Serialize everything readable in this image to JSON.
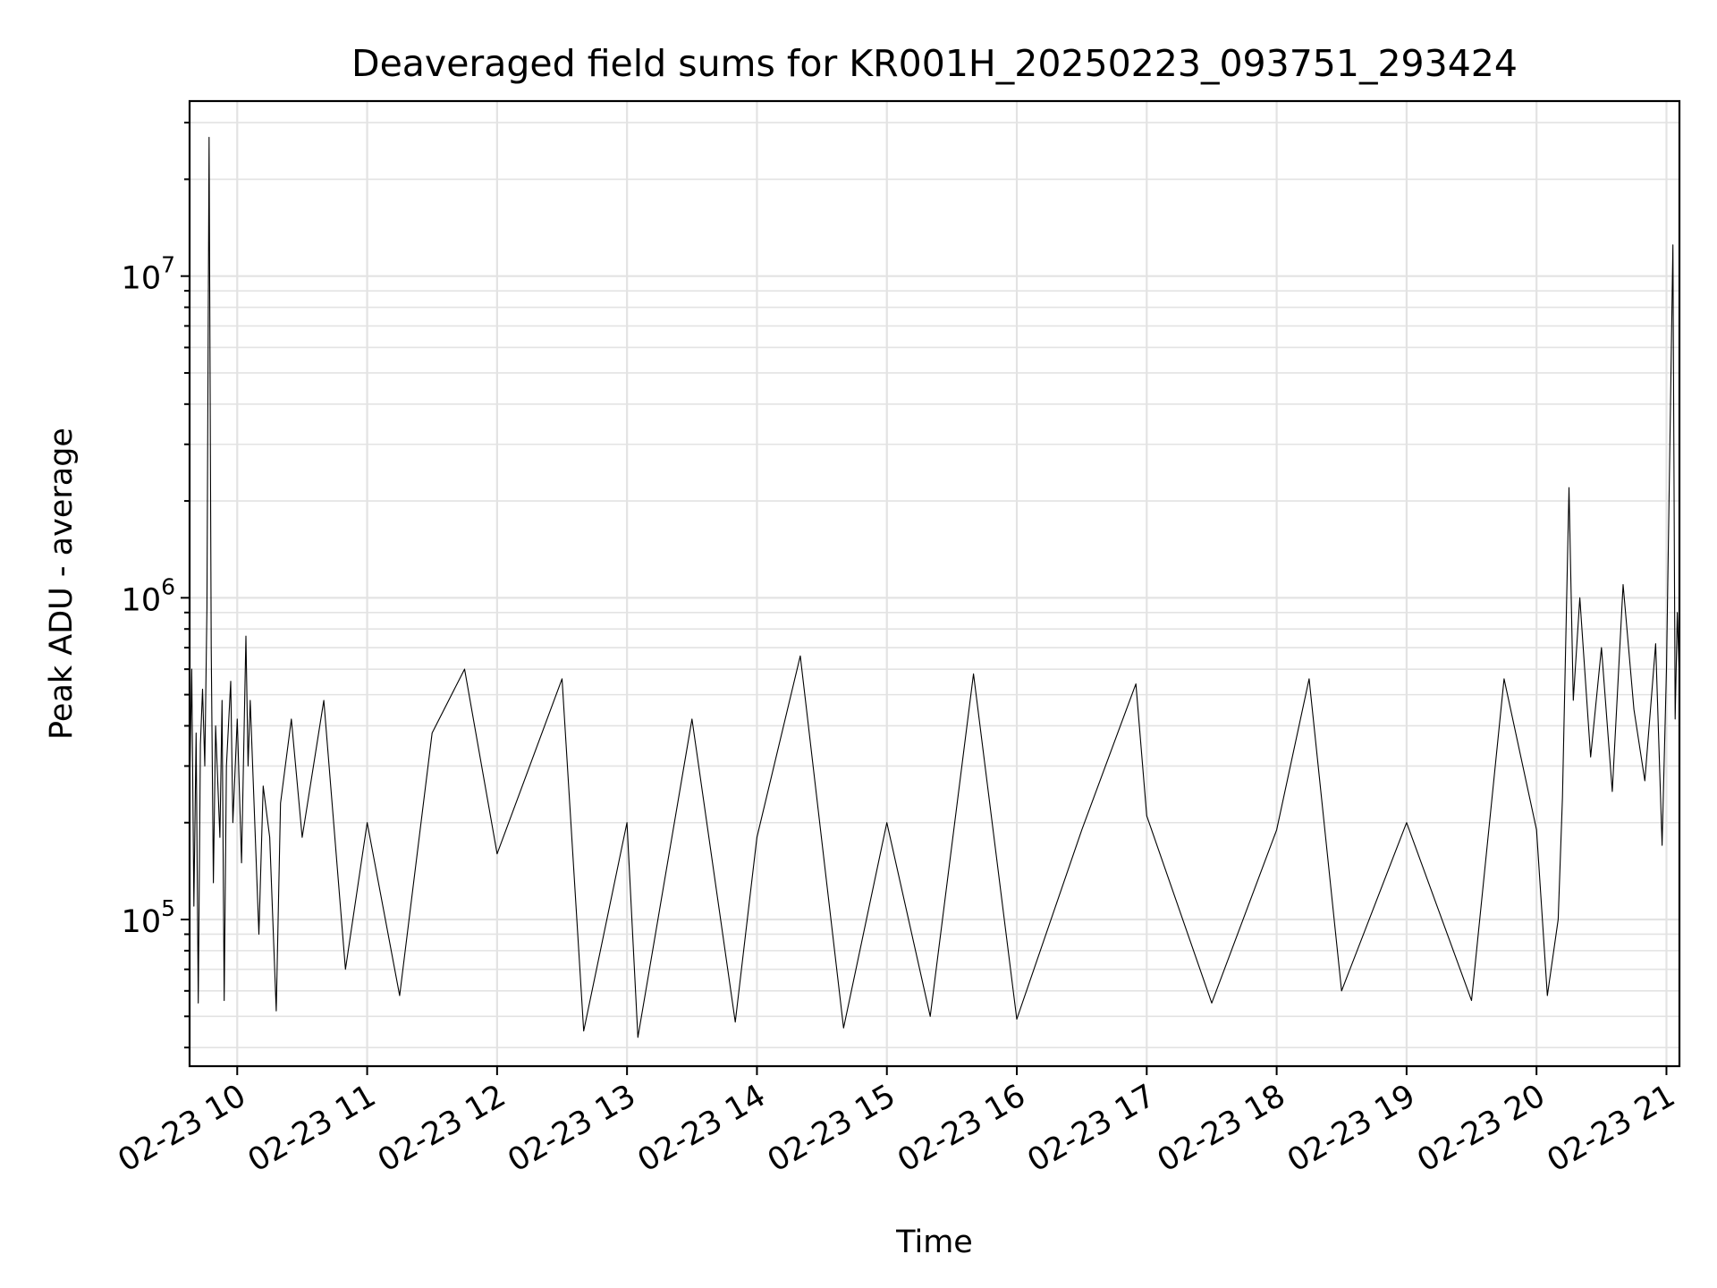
{
  "chart_data": {
    "type": "line",
    "title": "Deaveraged field sums for KR001H_20250223_093751_293424",
    "xlabel": "Time",
    "ylabel": "Peak ADU - average",
    "yscale": "log",
    "grid": true,
    "grid_minor": true,
    "xlim": [
      "2025-02-23 09:38",
      "2025-02-23 21:06"
    ],
    "ylim": [
      35000,
      35000000
    ],
    "xtick_labels": [
      "02-23 10",
      "02-23 11",
      "02-23 12",
      "02-23 13",
      "02-23 14",
      "02-23 15",
      "02-23 16",
      "02-23 17",
      "02-23 18",
      "02-23 19",
      "02-23 20",
      "02-23 21"
    ],
    "ytick_labels": [
      {
        "base": "10",
        "exp": "5",
        "value": 100000
      },
      {
        "base": "10",
        "exp": "6",
        "value": 1000000
      },
      {
        "base": "10",
        "exp": "7",
        "value": 10000000
      }
    ],
    "series": [
      {
        "color": "#000000",
        "points": [
          [
            "2025-02-23 09:38",
            250000
          ],
          [
            "2025-02-23 09:39",
            600000
          ],
          [
            "2025-02-23 09:40",
            110000
          ],
          [
            "2025-02-23 09:41",
            380000
          ],
          [
            "2025-02-23 09:42",
            55000
          ],
          [
            "2025-02-23 09:43",
            350000
          ],
          [
            "2025-02-23 09:44",
            520000
          ],
          [
            "2025-02-23 09:45",
            300000
          ],
          [
            "2025-02-23 09:46",
            930000
          ],
          [
            "2025-02-23 09:47",
            27000000
          ],
          [
            "2025-02-23 09:48",
            700000
          ],
          [
            "2025-02-23 09:49",
            130000
          ],
          [
            "2025-02-23 09:50",
            400000
          ],
          [
            "2025-02-23 09:52",
            180000
          ],
          [
            "2025-02-23 09:53",
            480000
          ],
          [
            "2025-02-23 09:54",
            56000
          ],
          [
            "2025-02-23 09:55",
            300000
          ],
          [
            "2025-02-23 09:57",
            550000
          ],
          [
            "2025-02-23 09:58",
            200000
          ],
          [
            "2025-02-23 10:00",
            420000
          ],
          [
            "2025-02-23 10:02",
            150000
          ],
          [
            "2025-02-23 10:04",
            760000
          ],
          [
            "2025-02-23 10:05",
            300000
          ],
          [
            "2025-02-23 10:06",
            480000
          ],
          [
            "2025-02-23 10:08",
            210000
          ],
          [
            "2025-02-23 10:10",
            90000
          ],
          [
            "2025-02-23 10:12",
            260000
          ],
          [
            "2025-02-23 10:15",
            180000
          ],
          [
            "2025-02-23 10:18",
            52000
          ],
          [
            "2025-02-23 10:20",
            230000
          ],
          [
            "2025-02-23 10:25",
            420000
          ],
          [
            "2025-02-23 10:30",
            180000
          ],
          [
            "2025-02-23 10:40",
            480000
          ],
          [
            "2025-02-23 10:50",
            70000
          ],
          [
            "2025-02-23 11:00",
            200000
          ],
          [
            "2025-02-23 11:15",
            58000
          ],
          [
            "2025-02-23 11:30",
            380000
          ],
          [
            "2025-02-23 11:45",
            600000
          ],
          [
            "2025-02-23 12:00",
            160000
          ],
          [
            "2025-02-23 12:30",
            560000
          ],
          [
            "2025-02-23 12:40",
            45000
          ],
          [
            "2025-02-23 13:00",
            200000
          ],
          [
            "2025-02-23 13:05",
            43000
          ],
          [
            "2025-02-23 13:30",
            420000
          ],
          [
            "2025-02-23 13:50",
            48000
          ],
          [
            "2025-02-23 14:00",
            180000
          ],
          [
            "2025-02-23 14:20",
            660000
          ],
          [
            "2025-02-23 14:40",
            46000
          ],
          [
            "2025-02-23 15:00",
            200000
          ],
          [
            "2025-02-23 15:20",
            50000
          ],
          [
            "2025-02-23 15:40",
            580000
          ],
          [
            "2025-02-23 16:00",
            49000
          ],
          [
            "2025-02-23 16:30",
            190000
          ],
          [
            "2025-02-23 16:55",
            540000
          ],
          [
            "2025-02-23 17:00",
            210000
          ],
          [
            "2025-02-23 17:30",
            55000
          ],
          [
            "2025-02-23 18:00",
            190000
          ],
          [
            "2025-02-23 18:15",
            560000
          ],
          [
            "2025-02-23 18:30",
            60000
          ],
          [
            "2025-02-23 19:00",
            200000
          ],
          [
            "2025-02-23 19:30",
            56000
          ],
          [
            "2025-02-23 19:45",
            560000
          ],
          [
            "2025-02-23 20:00",
            190000
          ],
          [
            "2025-02-23 20:05",
            58000
          ],
          [
            "2025-02-23 20:10",
            100000
          ],
          [
            "2025-02-23 20:12",
            240000
          ],
          [
            "2025-02-23 20:15",
            2200000
          ],
          [
            "2025-02-23 20:17",
            480000
          ],
          [
            "2025-02-23 20:20",
            1000000
          ],
          [
            "2025-02-23 20:25",
            320000
          ],
          [
            "2025-02-23 20:30",
            700000
          ],
          [
            "2025-02-23 20:35",
            250000
          ],
          [
            "2025-02-23 20:40",
            1100000
          ],
          [
            "2025-02-23 20:45",
            450000
          ],
          [
            "2025-02-23 20:50",
            270000
          ],
          [
            "2025-02-23 20:55",
            720000
          ],
          [
            "2025-02-23 20:58",
            170000
          ],
          [
            "2025-02-23 21:00",
            600000
          ],
          [
            "2025-02-23 21:03",
            12500000
          ],
          [
            "2025-02-23 21:04",
            420000
          ],
          [
            "2025-02-23 21:05",
            900000
          ],
          [
            "2025-02-23 21:06",
            550000
          ]
        ]
      }
    ]
  }
}
